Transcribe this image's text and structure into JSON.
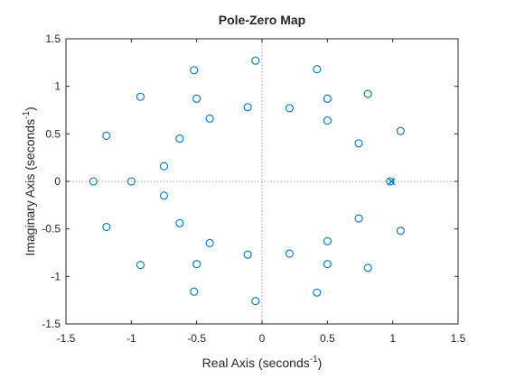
{
  "chart_data": {
    "type": "scatter",
    "title": "Pole-Zero Map",
    "xlabel_base": "Real Axis (seconds",
    "xlabel_sup": "-1",
    "xlabel_end": ")",
    "ylabel_base": "Imaginary Axis (seconds",
    "ylabel_sup": "-1",
    "ylabel_end": ")",
    "xlim": [
      -1.5,
      1.5
    ],
    "ylim": [
      -1.5,
      1.5
    ],
    "xticks": [
      -1.5,
      -1,
      -0.5,
      0,
      0.5,
      1,
      1.5
    ],
    "yticks": [
      -1.5,
      -1,
      -0.5,
      0,
      0.5,
      1,
      1.5
    ],
    "xtick_labels": [
      "-1.5",
      "-1",
      "-0.5",
      "0",
      "0.5",
      "1",
      "1.5"
    ],
    "ytick_labels": [
      "-1.5",
      "-1",
      "-0.5",
      "0",
      "0.5",
      "1",
      "1.5"
    ],
    "grid": false,
    "reference_lines": [
      "x=0",
      "y=0"
    ],
    "marker_color": "#0072BD",
    "zeros": [
      {
        "x": -1.29,
        "y": 0.0
      },
      {
        "x": -1.0,
        "y": 0.0
      },
      {
        "x": -1.19,
        "y": 0.48
      },
      {
        "x": -1.19,
        "y": -0.48
      },
      {
        "x": -0.93,
        "y": 0.89
      },
      {
        "x": -0.93,
        "y": -0.88
      },
      {
        "x": -0.75,
        "y": 0.16
      },
      {
        "x": -0.75,
        "y": -0.15
      },
      {
        "x": -0.63,
        "y": 0.45
      },
      {
        "x": -0.63,
        "y": -0.44
      },
      {
        "x": -0.52,
        "y": 1.17
      },
      {
        "x": -0.52,
        "y": -1.16
      },
      {
        "x": -0.5,
        "y": 0.87
      },
      {
        "x": -0.5,
        "y": -0.87
      },
      {
        "x": -0.4,
        "y": 0.66
      },
      {
        "x": -0.4,
        "y": -0.65
      },
      {
        "x": -0.11,
        "y": 0.78
      },
      {
        "x": -0.11,
        "y": -0.77
      },
      {
        "x": -0.05,
        "y": 1.27
      },
      {
        "x": -0.05,
        "y": -1.26
      },
      {
        "x": 0.21,
        "y": 0.77
      },
      {
        "x": 0.21,
        "y": -0.76
      },
      {
        "x": 0.42,
        "y": 1.18
      },
      {
        "x": 0.42,
        "y": -1.17
      },
      {
        "x": 0.5,
        "y": 0.87
      },
      {
        "x": 0.5,
        "y": -0.87
      },
      {
        "x": 0.5,
        "y": 0.64
      },
      {
        "x": 0.5,
        "y": -0.63
      },
      {
        "x": 0.74,
        "y": 0.4
      },
      {
        "x": 0.74,
        "y": -0.39
      },
      {
        "x": 0.81,
        "y": 0.92
      },
      {
        "x": 0.81,
        "y": -0.91
      },
      {
        "x": 1.06,
        "y": 0.53
      },
      {
        "x": 1.06,
        "y": -0.52
      },
      {
        "x": 0.98,
        "y": 0.0
      }
    ],
    "poles": [
      {
        "x": 0.99,
        "y": 0.0
      }
    ]
  }
}
